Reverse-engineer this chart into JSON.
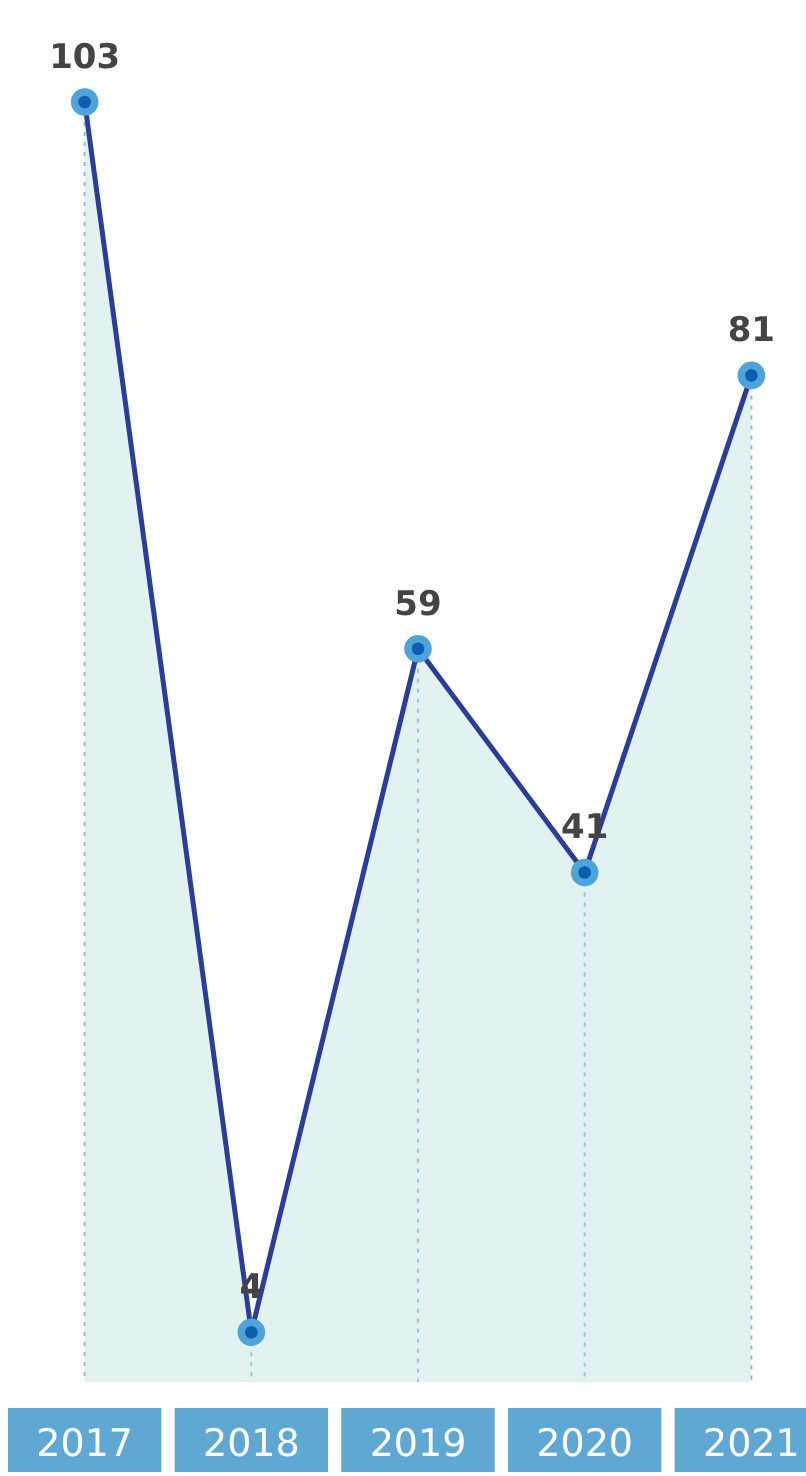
{
  "chart_data": {
    "type": "area",
    "categories": [
      "2017",
      "2018",
      "2019",
      "2020",
      "2021"
    ],
    "series": [
      {
        "color": "#2b3d9b",
        "values": [
          103,
          4,
          59,
          41,
          81
        ]
      }
    ],
    "marker": "circle",
    "data_labels": true
  }
}
